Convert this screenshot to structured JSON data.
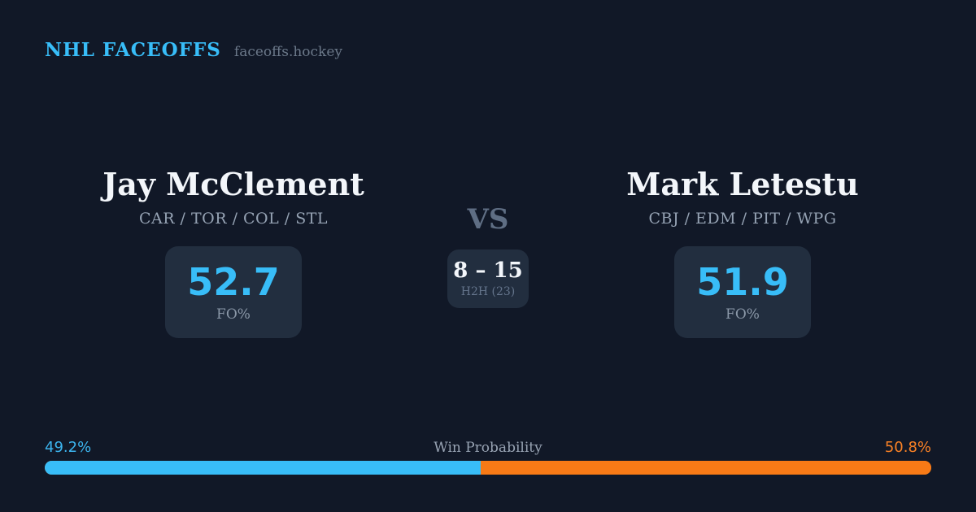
{
  "header": {
    "brand": "NHL FACEOFFS",
    "site": "faceoffs.hockey"
  },
  "left_player": {
    "name": "Jay McClement",
    "teams": "CAR / TOR / COL / STL",
    "stat_value": "52.7",
    "stat_label": "FO%"
  },
  "matchup": {
    "vs_label": "VS",
    "h2h_score": "8 – 15",
    "h2h_label": "H2H (23)"
  },
  "right_player": {
    "name": "Mark Letestu",
    "teams": "CBJ / EDM / PIT / WPG",
    "stat_value": "51.9",
    "stat_label": "FO%"
  },
  "win_probability": {
    "label": "Win Probability",
    "left_pct": 49.2,
    "right_pct": 50.8,
    "left_pct_label": "49.2%",
    "right_pct_label": "50.8%"
  },
  "colors": {
    "background": "#111827",
    "card": "#222e3f",
    "accent_blue": "#38bdf8",
    "accent_orange": "#f87a16",
    "text_primary": "#f3f6fa",
    "text_muted": "#96a3b4"
  }
}
